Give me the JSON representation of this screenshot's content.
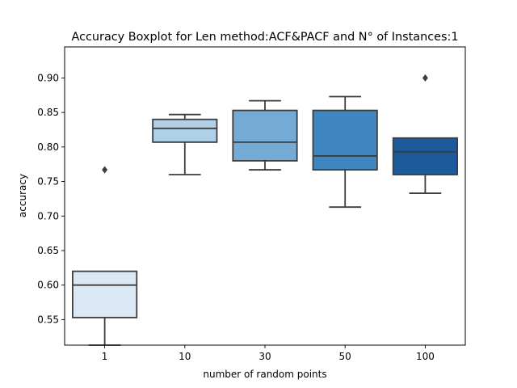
{
  "chart_data": {
    "type": "boxplot",
    "title": "Accuracy Boxplot for Len method:ACF&PACF and N° of Instances:1",
    "xlabel": "number of random points",
    "ylabel": "accuracy",
    "ylim": [
      0.513,
      0.945
    ],
    "yticks": [
      0.55,
      0.6,
      0.65,
      0.7,
      0.75,
      0.8,
      0.85,
      0.9
    ],
    "ytick_labels": [
      "0.55",
      "0.60",
      "0.65",
      "0.70",
      "0.75",
      "0.80",
      "0.85",
      "0.90"
    ],
    "grid": false,
    "categories": [
      "1",
      "10",
      "30",
      "50",
      "100"
    ],
    "boxes": [
      {
        "category": "1",
        "whisker_low": 0.513,
        "q1": 0.553,
        "median": 0.6,
        "q3": 0.62,
        "whisker_high": 0.62,
        "outliers": [
          0.767
        ],
        "color": "#dbe8f5"
      },
      {
        "category": "10",
        "whisker_low": 0.76,
        "q1": 0.807,
        "median": 0.827,
        "q3": 0.84,
        "whisker_high": 0.847,
        "outliers": [],
        "color": "#b0d0e7"
      },
      {
        "category": "30",
        "whisker_low": 0.767,
        "q1": 0.78,
        "median": 0.807,
        "q3": 0.853,
        "whisker_high": 0.867,
        "outliers": [],
        "color": "#74aad4"
      },
      {
        "category": "50",
        "whisker_low": 0.713,
        "q1": 0.767,
        "median": 0.787,
        "q3": 0.853,
        "whisker_high": 0.873,
        "outliers": [],
        "color": "#4086c0"
      },
      {
        "category": "100",
        "whisker_low": 0.733,
        "q1": 0.76,
        "median": 0.793,
        "q3": 0.813,
        "whisker_high": 0.813,
        "outliers": [
          0.9
        ],
        "color": "#1d5a9b"
      }
    ],
    "line_color": "#3d3d3d"
  }
}
